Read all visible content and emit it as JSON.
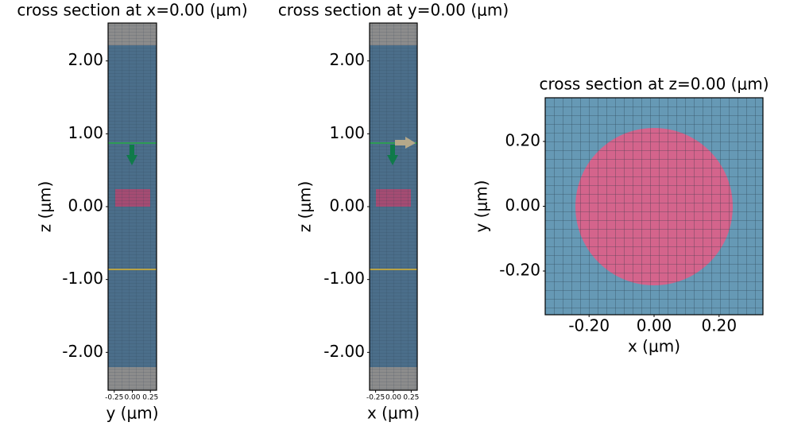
{
  "chart_data": [
    {
      "type": "cross-section",
      "title": "cross section at x=0.00 (μm)",
      "xlabel": "y (μm)",
      "ylabel": "z (μm)",
      "xlim": [
        -0.335,
        0.335
      ],
      "ylim": [
        -2.52,
        2.52
      ],
      "xticks": [
        -0.25,
        {
          "value": 0,
          "label": "0.00"
        },
        0.25
      ],
      "yticks": [
        {
          "value": -2,
          "label": "-2.00"
        },
        {
          "value": -1,
          "label": "-1.00"
        },
        {
          "value": 0,
          "label": "0.00"
        },
        {
          "value": 1,
          "label": "1.00"
        },
        {
          "value": 2,
          "label": "2.00"
        }
      ]
    },
    {
      "type": "cross-section",
      "title": "cross section at y=0.00 (μm)",
      "xlabel": "x (μm)",
      "ylabel": "z (μm)",
      "xlim": [
        -0.335,
        0.335
      ],
      "ylim": [
        -2.52,
        2.52
      ],
      "xticks": [
        -0.25,
        {
          "value": 0,
          "label": "0.00"
        },
        0.25
      ],
      "yticks": [
        {
          "value": -2,
          "label": "-2.00"
        },
        {
          "value": -1,
          "label": "-1.00"
        },
        {
          "value": 0,
          "label": "0.00"
        },
        {
          "value": 1,
          "label": "1.00"
        },
        {
          "value": 2,
          "label": "2.00"
        }
      ]
    },
    {
      "type": "cross-section",
      "title": "cross section at z=0.00 (μm)",
      "xlabel": "x (μm)",
      "ylabel": "y (μm)",
      "xlim": [
        -0.335,
        0.335
      ],
      "ylim": [
        -0.335,
        0.335
      ],
      "xticks": [
        {
          "value": -0.2,
          "label": "-0.20"
        },
        {
          "value": 0,
          "label": "0.00"
        },
        {
          "value": 0.2,
          "label": "0.20"
        }
      ],
      "yticks": [
        {
          "value": -0.2,
          "label": "-0.20"
        },
        {
          "value": 0,
          "label": "0.00"
        },
        {
          "value": 0.2,
          "label": "0.20"
        }
      ]
    }
  ]
}
